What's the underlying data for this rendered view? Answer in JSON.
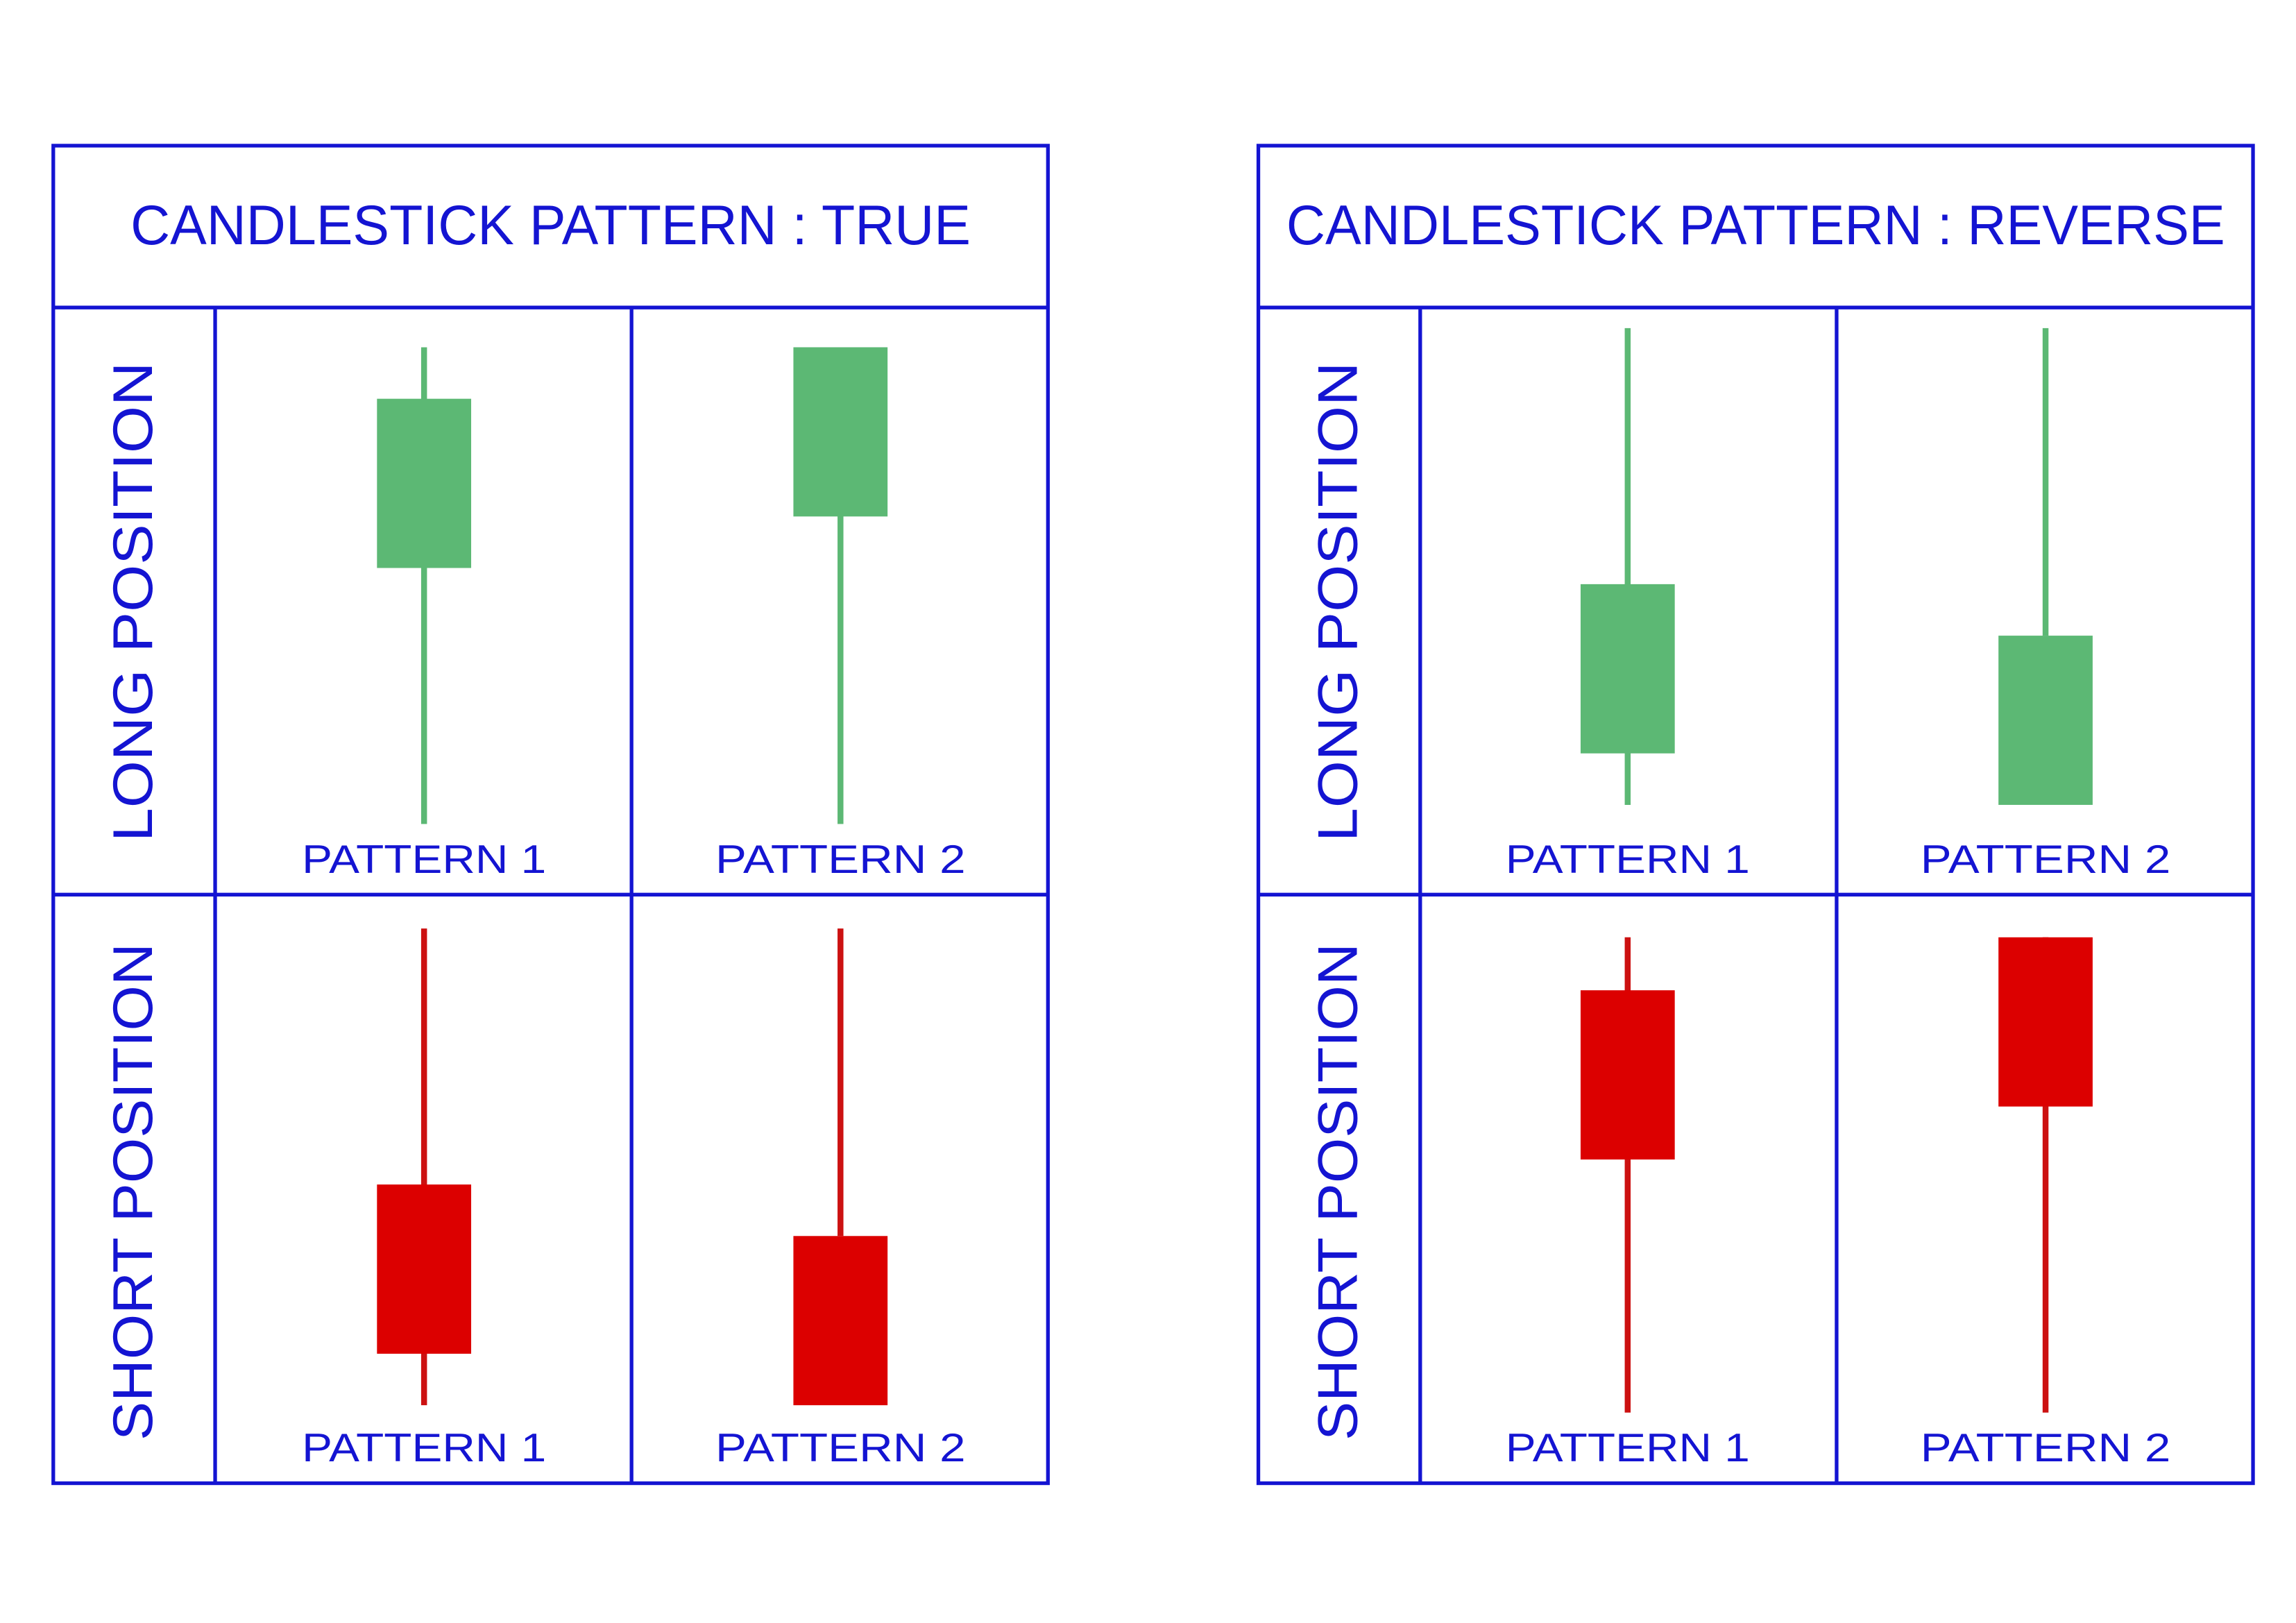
{
  "panels": [
    {
      "title": "CANDLESTICK PATTERN : TRUE",
      "rows": [
        {
          "label": "LONG POSITION",
          "cells": [
            {
              "label": "PATTERN 1"
            },
            {
              "label": "PATTERN 2"
            }
          ]
        },
        {
          "label": "SHORT POSITION",
          "cells": [
            {
              "label": "PATTERN 1"
            },
            {
              "label": "PATTERN 2"
            }
          ]
        }
      ]
    },
    {
      "title": "CANDLESTICK PATTERN : REVERSE",
      "rows": [
        {
          "label": "LONG POSITION",
          "cells": [
            {
              "label": "PATTERN 1"
            },
            {
              "label": "PATTERN 2"
            }
          ]
        },
        {
          "label": "SHORT POSITION",
          "cells": [
            {
              "label": "PATTERN 1"
            },
            {
              "label": "PATTERN 2"
            }
          ]
        }
      ]
    }
  ]
}
